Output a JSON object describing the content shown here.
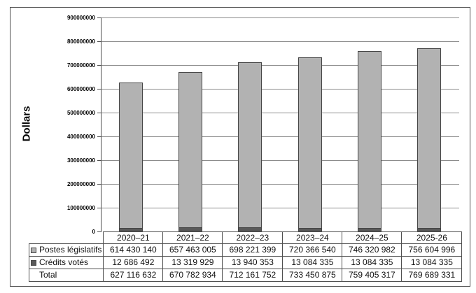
{
  "colors": {
    "bar_light_fill": "#b2b2b2",
    "bar_dark_fill": "#595959",
    "bar_border": "#454545",
    "gridline": "#8c8c8c",
    "axis": "#4f4f4f",
    "figure_border": "#4f4f4f",
    "text": "#000000"
  },
  "chart_data": {
    "type": "bar",
    "stacked": true,
    "title": "",
    "xlabel": "",
    "ylabel": "Dollars",
    "ylim": [
      0,
      900000000
    ],
    "ytick_step": 100000000,
    "grid": true,
    "legend_position": "table-left",
    "categories": [
      "2020–21",
      "2021–22",
      "2022–23",
      "2023–24",
      "2024–25",
      "2025-26"
    ],
    "series": [
      {
        "name": "Postes législatifs",
        "swatch": "light",
        "values": [
          614430140,
          657463005,
          698221399,
          720366540,
          746320982,
          756604996
        ]
      },
      {
        "name": "Crédits votés",
        "swatch": "dark",
        "values": [
          12686492,
          13319929,
          13940353,
          13084335,
          13084335,
          13084335
        ]
      }
    ],
    "totals": [
      627116632,
      670782934,
      712161752,
      733450875,
      759405317,
      769689331
    ]
  },
  "table": {
    "header_blank": "",
    "rows": [
      {
        "label": "Postes législatifs",
        "swatch": "light",
        "values": [
          "614 430 140",
          "657 463 005",
          "698 221 399",
          "720 366 540",
          "746 320 982",
          "756 604 996"
        ]
      },
      {
        "label": "Crédits votés",
        "swatch": "dark",
        "values": [
          "12 686 492",
          "13 319 929",
          "13 940 353",
          "13 084 335",
          "13 084 335",
          "13 084 335"
        ]
      },
      {
        "label": "Total",
        "swatch": "none",
        "values": [
          "627 116 632",
          "670 782 934",
          "712 161 752",
          "733 450 875",
          "759 405 317",
          "769 689 331"
        ]
      }
    ]
  }
}
